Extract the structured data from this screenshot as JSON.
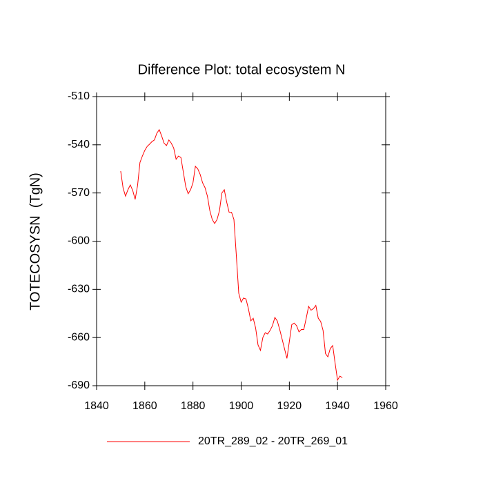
{
  "chart_data": {
    "type": "line",
    "title": "Difference Plot: total ecosystem N",
    "y_label": "TOTECOSYSN  (TgN)",
    "x": [
      1850,
      1851,
      1852,
      1853,
      1854,
      1855,
      1856,
      1857,
      1858,
      1859,
      1860,
      1861,
      1862,
      1863,
      1864,
      1865,
      1866,
      1867,
      1868,
      1869,
      1870,
      1871,
      1872,
      1873,
      1874,
      1875,
      1876,
      1877,
      1878,
      1879,
      1880,
      1881,
      1882,
      1883,
      1884,
      1885,
      1886,
      1887,
      1888,
      1889,
      1890,
      1891,
      1892,
      1893,
      1894,
      1895,
      1896,
      1897,
      1898,
      1899,
      1900,
      1901,
      1902,
      1903,
      1904,
      1905,
      1906,
      1907,
      1908,
      1909,
      1910,
      1911,
      1912,
      1913,
      1914,
      1915,
      1916,
      1917,
      1918,
      1919,
      1920,
      1921,
      1922,
      1923,
      1924,
      1925,
      1926,
      1927,
      1928,
      1929,
      1930,
      1931,
      1932,
      1933,
      1934,
      1935,
      1936,
      1937,
      1938,
      1939,
      1940,
      1941,
      1942
    ],
    "series": [
      {
        "name": "20TR_289_02 - 20TR_269_01",
        "color": "#ff0000",
        "values": [
          -556.4,
          -567,
          -572,
          -568,
          -565,
          -568.5,
          -574,
          -565.4,
          -551,
          -547,
          -543.5,
          -541,
          -539.6,
          -538,
          -537,
          -532.8,
          -530.6,
          -534.5,
          -539,
          -540.5,
          -537,
          -539,
          -542,
          -549,
          -547,
          -548,
          -557,
          -566,
          -570.5,
          -568,
          -563.7,
          -553.4,
          -555,
          -558.5,
          -563.7,
          -566.7,
          -572,
          -581,
          -586.5,
          -589,
          -586.5,
          -581,
          -570,
          -568,
          -575.7,
          -582,
          -582,
          -586.5,
          -609,
          -632.4,
          -638,
          -635.4,
          -636,
          -642,
          -649.6,
          -648,
          -654,
          -664.6,
          -668,
          -660,
          -657,
          -657.8,
          -655.6,
          -652.6,
          -647.5,
          -649.7,
          -655,
          -661,
          -667,
          -673,
          -662.5,
          -652,
          -651,
          -652.6,
          -656.5,
          -655,
          -655,
          -648,
          -640.6,
          -643,
          -642,
          -640,
          -648,
          -650,
          -655.6,
          -670,
          -672,
          -666.8,
          -665,
          -676,
          -686.5,
          -684,
          -685
        ]
      }
    ],
    "xlim": [
      1840,
      1960
    ],
    "xticks": [
      1840,
      1860,
      1880,
      1900,
      1920,
      1940,
      1960
    ],
    "ylim": [
      -690,
      -510
    ],
    "yticks": [
      -690,
      -660,
      -630,
      -600,
      -570,
      -540,
      -510
    ]
  }
}
